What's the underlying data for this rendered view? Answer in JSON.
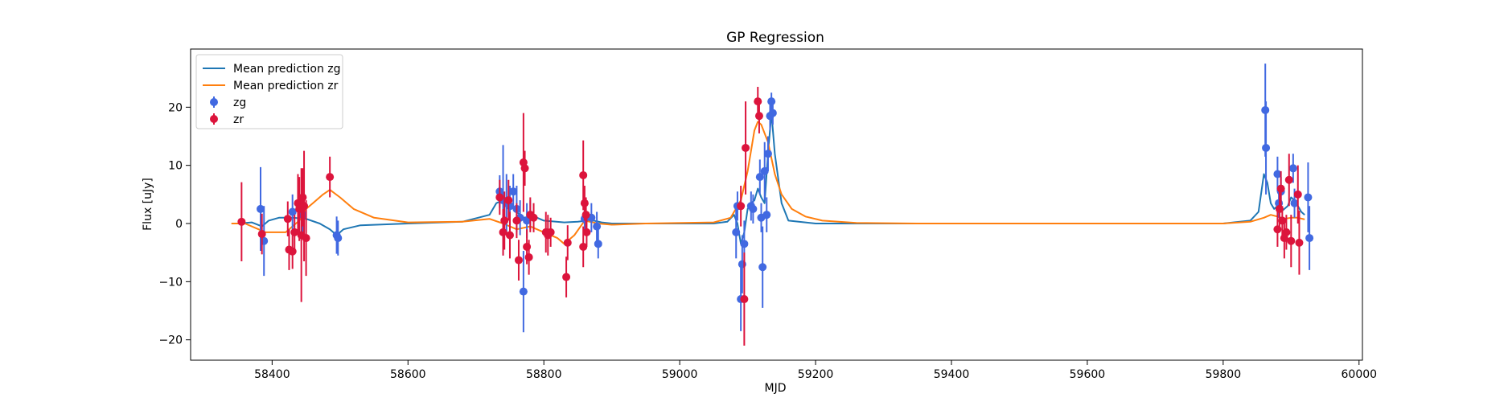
{
  "chart_data": {
    "type": "scatter",
    "title": "GP Regression",
    "xlabel": "MJD",
    "ylabel": "Flux [uJy]",
    "xlim": [
      58280,
      60005
    ],
    "ylim": [
      -23.5,
      30.0
    ],
    "xticks": [
      58400,
      58600,
      58800,
      59000,
      59200,
      59400,
      59600,
      59800,
      60000
    ],
    "yticks": [
      -20,
      -10,
      0,
      10,
      20
    ],
    "grid": false,
    "legend_position": "top-left",
    "colors": {
      "mean_zg": "#1f77b4",
      "mean_zr": "#ff7f0e",
      "points_zg": "#4169e1",
      "points_zr": "#dc143c"
    },
    "series": [
      {
        "name": "Mean prediction zg",
        "kind": "line",
        "x": [
          58350,
          58370,
          58385,
          58395,
          58410,
          58430,
          58450,
          58470,
          58485,
          58495,
          58505,
          58530,
          58600,
          58680,
          58720,
          58730,
          58740,
          58750,
          58760,
          58770,
          58780,
          58790,
          58800,
          58830,
          58850,
          58870,
          58885,
          58900,
          58950,
          59020,
          59050,
          59070,
          59080,
          59085,
          59090,
          59095,
          59100,
          59105,
          59110,
          59115,
          59120,
          59125,
          59130,
          59135,
          59140,
          59150,
          59160,
          59200,
          59400,
          59600,
          59800,
          59840,
          59852,
          59860,
          59865,
          59870,
          59875,
          59880,
          59885,
          59890,
          59895,
          59900,
          59905,
          59910,
          59915,
          59920
        ],
        "y": [
          0,
          0.2,
          -0.5,
          0.5,
          1.0,
          1.0,
          0.8,
          0,
          -1.0,
          -2.0,
          -1.0,
          -0.3,
          0,
          0.3,
          1.5,
          3.5,
          4.0,
          3.5,
          2.0,
          1.0,
          1.2,
          1.0,
          0.5,
          0.2,
          0.3,
          0.6,
          0.2,
          0,
          0,
          0,
          0,
          0.3,
          1.5,
          0,
          -3.5,
          -1.5,
          2.5,
          3.5,
          4.0,
          6.0,
          4.5,
          3.5,
          12.0,
          19.0,
          12.0,
          3.5,
          0.5,
          0,
          0,
          0,
          0,
          0.5,
          2.0,
          8.5,
          7.0,
          3.5,
          2.5,
          3.0,
          2.0,
          2.5,
          3.0,
          4.5,
          4.0,
          3.0,
          2.0,
          1.5
        ]
      },
      {
        "name": "Mean prediction zr",
        "kind": "line",
        "x": [
          58340,
          58360,
          58380,
          58390,
          58400,
          58420,
          58440,
          58450,
          58460,
          58475,
          58485,
          58500,
          58520,
          58550,
          58600,
          58680,
          58720,
          58740,
          58760,
          58780,
          58800,
          58820,
          58830,
          58845,
          58860,
          58880,
          58900,
          58950,
          59050,
          59075,
          59090,
          59100,
          59110,
          59115,
          59120,
          59130,
          59140,
          59150,
          59165,
          59185,
          59210,
          59260,
          59350,
          59500,
          59700,
          59800,
          59840,
          59860,
          59870,
          59880,
          59890,
          59900,
          59910,
          59920
        ],
        "y": [
          0,
          0,
          -1.0,
          -1.5,
          -1.5,
          -1.5,
          0.5,
          2.5,
          3.5,
          5.0,
          5.8,
          4.5,
          2.5,
          1.0,
          0.2,
          0.3,
          0.8,
          0,
          -1.0,
          -0.5,
          -1.5,
          -2.5,
          -3.5,
          -2.0,
          0.5,
          0,
          -0.2,
          0,
          0.2,
          1.0,
          4.0,
          9.0,
          16.0,
          17.5,
          17.0,
          14.0,
          8.5,
          5.0,
          2.5,
          1.2,
          0.5,
          0.1,
          0,
          0,
          0,
          0,
          0.3,
          1.0,
          1.5,
          1.2,
          0.8,
          1.0,
          1.0,
          0.7
        ]
      },
      {
        "name": "zg",
        "kind": "errorbar",
        "points": [
          {
            "x": 58383,
            "y": 2.5,
            "err": 7.2
          },
          {
            "x": 58388,
            "y": -3.0,
            "err": 6.0
          },
          {
            "x": 58430,
            "y": 2.0,
            "err": 3.0
          },
          {
            "x": 58445,
            "y": 1.5,
            "err": 3.5
          },
          {
            "x": 58495,
            "y": -2.0,
            "err": 3.2
          },
          {
            "x": 58497,
            "y": -2.5,
            "err": 3.0
          },
          {
            "x": 58735,
            "y": 5.5,
            "err": 2.8
          },
          {
            "x": 58740,
            "y": 4.0,
            "err": 9.5
          },
          {
            "x": 58745,
            "y": 3.5,
            "err": 5.0
          },
          {
            "x": 58750,
            "y": 3.0,
            "err": 3.5
          },
          {
            "x": 58755,
            "y": 5.5,
            "err": 3.0
          },
          {
            "x": 58760,
            "y": 2.5,
            "err": 4.0
          },
          {
            "x": 58765,
            "y": 1.0,
            "err": 3.0
          },
          {
            "x": 58770,
            "y": -11.7,
            "err": 7.0
          },
          {
            "x": 58775,
            "y": 0.5,
            "err": 3.0
          },
          {
            "x": 58780,
            "y": 1.5,
            "err": 2.5
          },
          {
            "x": 58860,
            "y": 0.8,
            "err": 2.5
          },
          {
            "x": 58870,
            "y": 1.0,
            "err": 2.5
          },
          {
            "x": 58880,
            "y": -3.5,
            "err": 2.5
          },
          {
            "x": 58878,
            "y": -0.5,
            "err": 2.5
          },
          {
            "x": 59083,
            "y": -1.5,
            "err": 4.5
          },
          {
            "x": 59085,
            "y": 3.0,
            "err": 2.5
          },
          {
            "x": 59090,
            "y": -13.0,
            "err": 5.5
          },
          {
            "x": 59092,
            "y": -7.0,
            "err": 5.0
          },
          {
            "x": 59095,
            "y": -3.5,
            "err": 4.0
          },
          {
            "x": 59105,
            "y": 3.0,
            "err": 2.5
          },
          {
            "x": 59108,
            "y": 2.5,
            "err": 2.5
          },
          {
            "x": 59118,
            "y": 8.0,
            "err": 3.0
          },
          {
            "x": 59120,
            "y": 1.0,
            "err": 2.5
          },
          {
            "x": 59122,
            "y": -7.5,
            "err": 7.0
          },
          {
            "x": 59125,
            "y": 9.0,
            "err": 5.0
          },
          {
            "x": 59128,
            "y": 1.5,
            "err": 3.0
          },
          {
            "x": 59130,
            "y": 12.0,
            "err": 3.0
          },
          {
            "x": 59133,
            "y": 18.5,
            "err": 2.5
          },
          {
            "x": 59135,
            "y": 21.0,
            "err": 1.5
          },
          {
            "x": 59137,
            "y": 19.0,
            "err": 2.0
          },
          {
            "x": 59862,
            "y": 19.5,
            "err": 8.0
          },
          {
            "x": 59863,
            "y": 13.0,
            "err": 8.0
          },
          {
            "x": 59880,
            "y": 8.5,
            "err": 3.0
          },
          {
            "x": 59882,
            "y": 3.5,
            "err": 2.5
          },
          {
            "x": 59885,
            "y": 5.5,
            "err": 2.5
          },
          {
            "x": 59903,
            "y": 9.5,
            "err": 2.5
          },
          {
            "x": 59905,
            "y": 3.5,
            "err": 2.5
          },
          {
            "x": 59925,
            "y": 4.5,
            "err": 6.0
          },
          {
            "x": 59927,
            "y": -2.5,
            "err": 5.5
          }
        ]
      },
      {
        "name": "zr",
        "kind": "errorbar",
        "points": [
          {
            "x": 58355,
            "y": 0.3,
            "err": 6.8
          },
          {
            "x": 58385,
            "y": -1.8,
            "err": 3.5
          },
          {
            "x": 58423,
            "y": 0.8,
            "err": 3.0
          },
          {
            "x": 58425,
            "y": -4.5,
            "err": 3.5
          },
          {
            "x": 58430,
            "y": -4.8,
            "err": 3.0
          },
          {
            "x": 58433,
            "y": -1.5,
            "err": 3.0
          },
          {
            "x": 58438,
            "y": 3.5,
            "err": 5.0
          },
          {
            "x": 58440,
            "y": 2.5,
            "err": 5.5
          },
          {
            "x": 58443,
            "y": -2.0,
            "err": 11.5
          },
          {
            "x": 58445,
            "y": 4.5,
            "err": 5.0
          },
          {
            "x": 58447,
            "y": 3.0,
            "err": 9.5
          },
          {
            "x": 58450,
            "y": -2.5,
            "err": 6.5
          },
          {
            "x": 58485,
            "y": 8.0,
            "err": 3.5
          },
          {
            "x": 58735,
            "y": 4.5,
            "err": 3.0
          },
          {
            "x": 58740,
            "y": -1.5,
            "err": 4.0
          },
          {
            "x": 58742,
            "y": 0.5,
            "err": 5.0
          },
          {
            "x": 58748,
            "y": 4.0,
            "err": 3.5
          },
          {
            "x": 58750,
            "y": -2.0,
            "err": 4.0
          },
          {
            "x": 58760,
            "y": 0.5,
            "err": 3.0
          },
          {
            "x": 58763,
            "y": -6.3,
            "err": 3.5
          },
          {
            "x": 58770,
            "y": 10.5,
            "err": 8.5
          },
          {
            "x": 58772,
            "y": 9.5,
            "err": 3.0
          },
          {
            "x": 58775,
            "y": -4.0,
            "err": 3.0
          },
          {
            "x": 58778,
            "y": -5.8,
            "err": 3.0
          },
          {
            "x": 58780,
            "y": 1.5,
            "err": 3.0
          },
          {
            "x": 58785,
            "y": 1.0,
            "err": 2.5
          },
          {
            "x": 58803,
            "y": -1.5,
            "err": 3.5
          },
          {
            "x": 58806,
            "y": -2.0,
            "err": 3.5
          },
          {
            "x": 58810,
            "y": -1.5,
            "err": 2.5
          },
          {
            "x": 58833,
            "y": -9.2,
            "err": 3.5
          },
          {
            "x": 58835,
            "y": -3.3,
            "err": 3.0
          },
          {
            "x": 58858,
            "y": 8.3,
            "err": 6.0
          },
          {
            "x": 58860,
            "y": 3.5,
            "err": 3.0
          },
          {
            "x": 58862,
            "y": 1.5,
            "err": 3.0
          },
          {
            "x": 58858,
            "y": -4.0,
            "err": 3.5
          },
          {
            "x": 58863,
            "y": -1.5,
            "err": 2.5
          },
          {
            "x": 59090,
            "y": 3.0,
            "err": 3.5
          },
          {
            "x": 59095,
            "y": -13.0,
            "err": 8.0
          },
          {
            "x": 59097,
            "y": 13.0,
            "err": 8.0
          },
          {
            "x": 59115,
            "y": 21.0,
            "err": 2.5
          },
          {
            "x": 59117,
            "y": 18.5,
            "err": 3.0
          },
          {
            "x": 59883,
            "y": 2.5,
            "err": 3.0
          },
          {
            "x": 59885,
            "y": 6.0,
            "err": 3.0
          },
          {
            "x": 59887,
            "y": 0.5,
            "err": 2.5
          },
          {
            "x": 59880,
            "y": -1.0,
            "err": 3.0
          },
          {
            "x": 59890,
            "y": -2.5,
            "err": 3.5
          },
          {
            "x": 59893,
            "y": -1.5,
            "err": 3.0
          },
          {
            "x": 59897,
            "y": 7.5,
            "err": 4.5
          },
          {
            "x": 59900,
            "y": -3.0,
            "err": 4.5
          },
          {
            "x": 59910,
            "y": 5.0,
            "err": 5.0
          },
          {
            "x": 59912,
            "y": -3.3,
            "err": 5.5
          }
        ]
      }
    ]
  }
}
